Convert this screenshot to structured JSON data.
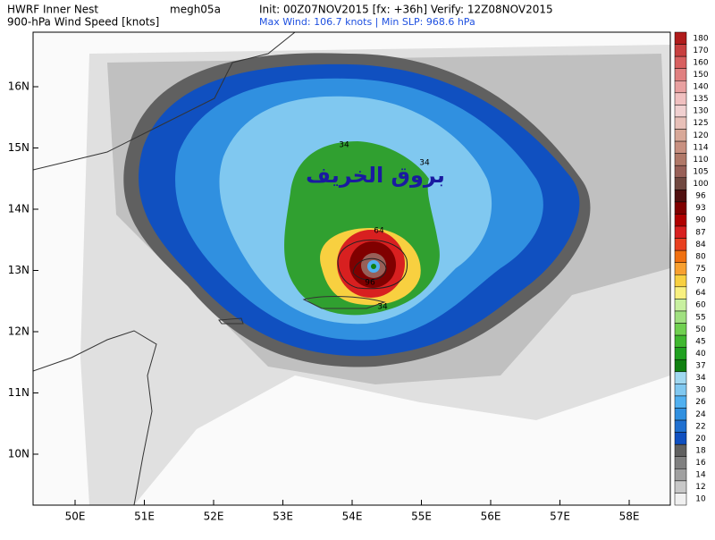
{
  "header": {
    "model": "HWRF Inner Nest",
    "storm": "megh05a",
    "times": "Init: 00Z07NOV2015 [fx: +36h] Verify: 12Z08NOV2015",
    "field": "900-hPa Wind Speed [knots]",
    "stats": "Max Wind: 106.7 knots | Min SLP: 968.6 hPa"
  },
  "map": {
    "lon_labels": [
      "50E",
      "51E",
      "52E",
      "53E",
      "54E",
      "55E",
      "56E",
      "57E",
      "58E"
    ],
    "lat_labels": [
      "16N",
      "15N",
      "14N",
      "13N",
      "12N",
      "11N",
      "10N"
    ],
    "contour_labels": [
      "34",
      "34",
      "64",
      "96",
      "34"
    ],
    "watermark": "بروق الخريف"
  },
  "colorbar": {
    "levels": [
      "180",
      "170",
      "160",
      "150",
      "140",
      "135",
      "130",
      "125",
      "120",
      "114",
      "110",
      "105",
      "100",
      "96",
      "93",
      "90",
      "87",
      "84",
      "80",
      "75",
      "70",
      "64",
      "60",
      "55",
      "50",
      "45",
      "40",
      "37",
      "34",
      "30",
      "26",
      "24",
      "22",
      "20",
      "18",
      "16",
      "14",
      "12",
      "10"
    ],
    "colors": [
      "#b01c1c",
      "#c84040",
      "#d86060",
      "#e08080",
      "#e8a0a0",
      "#f0c0c0",
      "#f0d0d0",
      "#e8c0b8",
      "#d8a898",
      "#c89080",
      "#b07868",
      "#986058",
      "#704840",
      "#501010",
      "#800000",
      "#b00000",
      "#d82020",
      "#e84020",
      "#f07010",
      "#f8a030",
      "#f8d040",
      "#f8f080",
      "#c8f0a0",
      "#a0e080",
      "#70d050",
      "#40b830",
      "#20a020",
      "#108010",
      "#a0d8f0",
      "#80c8f0",
      "#50b0f0",
      "#3090e0",
      "#2070d0",
      "#1050c0",
      "#606060",
      "#808080",
      "#a0a0a0",
      "#c8c8c8",
      "#f0f0f0"
    ]
  }
}
